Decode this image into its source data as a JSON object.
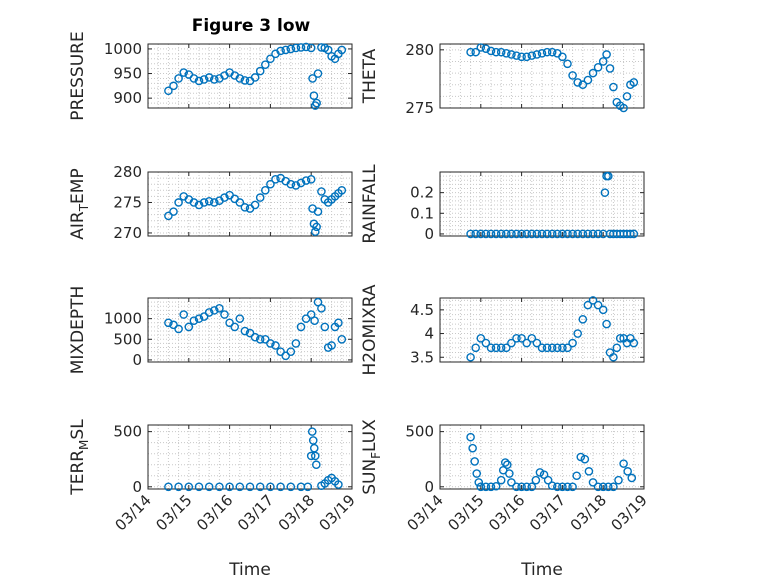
{
  "figure": {
    "title": "Figure 3 low",
    "colors": {
      "marker": "#0072bd",
      "axis": "#262626",
      "grid": "#c8c8c8",
      "background": "#ffffff"
    }
  },
  "chart_data": [
    {
      "id": "pressure",
      "type": "scatter",
      "ylabel": "PRESSURE",
      "ylim": [
        880,
        1010
      ],
      "yticks": [
        900,
        950,
        1000
      ],
      "ytick_labels": [
        "900",
        "950",
        "1000"
      ],
      "xlim": [
        "03/14",
        "03/19"
      ],
      "xticks": [
        "03/14",
        "03/15",
        "03/16",
        "03/17",
        "03/18",
        "03/19"
      ],
      "show_xtick_labels": false,
      "grid": true,
      "x": [
        "03/14 12:00",
        "03/14 15:00",
        "03/14 18:00",
        "03/14 21:00",
        "03/15 00:00",
        "03/15 03:00",
        "03/15 06:00",
        "03/15 09:00",
        "03/15 12:00",
        "03/15 15:00",
        "03/15 18:00",
        "03/15 21:00",
        "03/16 00:00",
        "03/16 03:00",
        "03/16 06:00",
        "03/16 09:00",
        "03/16 12:00",
        "03/16 15:00",
        "03/16 18:00",
        "03/16 21:00",
        "03/17 00:00",
        "03/17 03:00",
        "03/17 06:00",
        "03/17 09:00",
        "03/17 12:00",
        "03/17 15:00",
        "03/17 18:00",
        "03/17 21:00",
        "03/18 00:00",
        "03/18 00:48",
        "03/18 01:36",
        "03/18 02:24",
        "03/18 03:12",
        "03/18 04:00",
        "03/18 06:00",
        "03/18 08:00",
        "03/18 10:00",
        "03/18 12:00",
        "03/18 14:00",
        "03/18 16:00",
        "03/18 18:00"
      ],
      "y": [
        915,
        925,
        940,
        952,
        948,
        940,
        935,
        938,
        942,
        938,
        940,
        946,
        952,
        946,
        940,
        936,
        935,
        942,
        955,
        968,
        980,
        990,
        996,
        998,
        1000,
        1002,
        1003,
        1004,
        1002,
        940,
        905,
        885,
        890,
        950,
        1003,
        1002,
        998,
        985,
        980,
        990,
        998
      ]
    },
    {
      "id": "theta",
      "type": "scatter",
      "ylabel": "THETA",
      "ylim": [
        275,
        280.5
      ],
      "yticks": [
        275,
        280
      ],
      "ytick_labels": [
        "275",
        "280"
      ],
      "xlim": [
        "03/14",
        "03/19"
      ],
      "xticks": [
        "03/14",
        "03/15",
        "03/16",
        "03/17",
        "03/18",
        "03/19"
      ],
      "show_xtick_labels": false,
      "grid": true,
      "x": [
        "03/14 18:00",
        "03/14 21:00",
        "03/15 00:00",
        "03/15 03:00",
        "03/15 06:00",
        "03/15 09:00",
        "03/15 12:00",
        "03/15 15:00",
        "03/15 18:00",
        "03/15 21:00",
        "03/16 00:00",
        "03/16 03:00",
        "03/16 06:00",
        "03/16 09:00",
        "03/16 12:00",
        "03/16 15:00",
        "03/16 18:00",
        "03/16 21:00",
        "03/17 00:00",
        "03/17 03:00",
        "03/17 06:00",
        "03/17 09:00",
        "03/17 12:00",
        "03/17 15:00",
        "03/17 18:00",
        "03/17 21:00",
        "03/18 00:00",
        "03/18 02:00",
        "03/18 04:00",
        "03/18 06:00",
        "03/18 08:00",
        "03/18 10:00",
        "03/18 12:00",
        "03/18 14:00",
        "03/18 16:00",
        "03/18 18:00"
      ],
      "y": [
        279.8,
        279.8,
        280.2,
        280.1,
        279.9,
        279.8,
        279.8,
        279.7,
        279.6,
        279.5,
        279.4,
        279.4,
        279.5,
        279.6,
        279.7,
        279.8,
        279.8,
        279.7,
        279.4,
        278.8,
        277.8,
        277.2,
        277.0,
        277.4,
        278.0,
        278.5,
        279.0,
        279.6,
        278.4,
        276.8,
        275.5,
        275.2,
        275.0,
        276.0,
        277.0,
        277.2
      ]
    },
    {
      "id": "air_temp",
      "type": "scatter",
      "ylabel": "AIR_TEMP",
      "ylim": [
        269.5,
        280
      ],
      "yticks": [
        270,
        275,
        280
      ],
      "ytick_labels": [
        "270",
        "275",
        "280"
      ],
      "xlim": [
        "03/14",
        "03/19"
      ],
      "xticks": [
        "03/14",
        "03/15",
        "03/16",
        "03/17",
        "03/18",
        "03/19"
      ],
      "show_xtick_labels": false,
      "grid": true,
      "x": [
        "03/14 12:00",
        "03/14 15:00",
        "03/14 18:00",
        "03/14 21:00",
        "03/15 00:00",
        "03/15 03:00",
        "03/15 06:00",
        "03/15 09:00",
        "03/15 12:00",
        "03/15 15:00",
        "03/15 18:00",
        "03/15 21:00",
        "03/16 00:00",
        "03/16 03:00",
        "03/16 06:00",
        "03/16 09:00",
        "03/16 12:00",
        "03/16 15:00",
        "03/16 18:00",
        "03/16 21:00",
        "03/17 00:00",
        "03/17 03:00",
        "03/17 06:00",
        "03/17 09:00",
        "03/17 12:00",
        "03/17 15:00",
        "03/17 18:00",
        "03/17 21:00",
        "03/18 00:00",
        "03/18 00:48",
        "03/18 01:36",
        "03/18 02:24",
        "03/18 03:12",
        "03/18 04:00",
        "03/18 06:00",
        "03/18 08:00",
        "03/18 10:00",
        "03/18 12:00",
        "03/18 14:00",
        "03/18 16:00",
        "03/18 18:00"
      ],
      "y": [
        272.8,
        273.5,
        275.0,
        276.0,
        275.5,
        275.0,
        274.6,
        275.0,
        275.2,
        275.0,
        275.3,
        275.8,
        276.2,
        275.6,
        275.0,
        274.2,
        274.0,
        274.6,
        275.8,
        277.0,
        278.0,
        278.8,
        279.0,
        278.5,
        278.0,
        277.8,
        278.2,
        278.6,
        278.8,
        274.0,
        271.5,
        270.2,
        271.0,
        273.5,
        276.8,
        275.5,
        275.0,
        275.5,
        276.0,
        276.5,
        277.0
      ]
    },
    {
      "id": "rainfall",
      "type": "scatter",
      "ylabel": "RAINFALL",
      "ylim": [
        -0.01,
        0.3
      ],
      "yticks": [
        0,
        0.1,
        0.2
      ],
      "ytick_labels": [
        "0",
        "0.1",
        "0.2"
      ],
      "xlim": [
        "03/14",
        "03/19"
      ],
      "xticks": [
        "03/14",
        "03/15",
        "03/16",
        "03/17",
        "03/18",
        "03/19"
      ],
      "show_xtick_labels": false,
      "grid": true,
      "x": [
        "03/14 18:00",
        "03/14 21:00",
        "03/15 00:00",
        "03/15 03:00",
        "03/15 06:00",
        "03/15 09:00",
        "03/15 12:00",
        "03/15 15:00",
        "03/15 18:00",
        "03/15 21:00",
        "03/16 00:00",
        "03/16 03:00",
        "03/16 06:00",
        "03/16 09:00",
        "03/16 12:00",
        "03/16 15:00",
        "03/16 18:00",
        "03/16 21:00",
        "03/17 00:00",
        "03/17 03:00",
        "03/17 06:00",
        "03/17 09:00",
        "03/17 12:00",
        "03/17 15:00",
        "03/17 18:00",
        "03/17 21:00",
        "03/18 00:00",
        "03/18 01:00",
        "03/18 02:00",
        "03/18 03:00",
        "03/18 04:00",
        "03/18 06:00",
        "03/18 08:00",
        "03/18 10:00",
        "03/18 12:00",
        "03/18 14:00",
        "03/18 16:00",
        "03/18 18:00"
      ],
      "y": [
        0,
        0,
        0,
        0,
        0,
        0,
        0,
        0,
        0,
        0,
        0,
        0,
        0,
        0,
        0,
        0,
        0,
        0,
        0,
        0,
        0,
        0,
        0,
        0,
        0,
        0,
        0,
        0.2,
        0.28,
        0.28,
        0,
        0,
        0,
        0,
        0,
        0,
        0,
        0
      ]
    },
    {
      "id": "mixdepth",
      "type": "scatter",
      "ylabel": "MIXDEPTH",
      "ylim": [
        -50,
        1500
      ],
      "yticks": [
        0,
        500,
        1000
      ],
      "ytick_labels": [
        "0",
        "500",
        "1000"
      ],
      "xlim": [
        "03/14",
        "03/19"
      ],
      "xticks": [
        "03/14",
        "03/15",
        "03/16",
        "03/17",
        "03/18",
        "03/19"
      ],
      "show_xtick_labels": false,
      "grid": true,
      "x": [
        "03/14 12:00",
        "03/14 15:00",
        "03/14 18:00",
        "03/14 21:00",
        "03/15 00:00",
        "03/15 03:00",
        "03/15 06:00",
        "03/15 09:00",
        "03/15 12:00",
        "03/15 15:00",
        "03/15 18:00",
        "03/15 21:00",
        "03/16 00:00",
        "03/16 03:00",
        "03/16 06:00",
        "03/16 09:00",
        "03/16 12:00",
        "03/16 15:00",
        "03/16 18:00",
        "03/16 21:00",
        "03/17 00:00",
        "03/17 03:00",
        "03/17 06:00",
        "03/17 09:00",
        "03/17 12:00",
        "03/17 15:00",
        "03/17 18:00",
        "03/17 21:00",
        "03/18 00:00",
        "03/18 02:00",
        "03/18 04:00",
        "03/18 06:00",
        "03/18 08:00",
        "03/18 10:00",
        "03/18 12:00",
        "03/18 14:00",
        "03/18 16:00",
        "03/18 18:00"
      ],
      "y": [
        900,
        850,
        750,
        1100,
        800,
        950,
        1000,
        1050,
        1150,
        1200,
        1250,
        1100,
        900,
        800,
        1000,
        700,
        650,
        550,
        500,
        500,
        400,
        350,
        200,
        100,
        200,
        400,
        800,
        1000,
        1100,
        950,
        1400,
        1250,
        800,
        300,
        350,
        800,
        900,
        500
      ]
    },
    {
      "id": "h2omixra",
      "type": "scatter",
      "ylabel": "H2OMIXRA",
      "ylim": [
        3.4,
        4.75
      ],
      "yticks": [
        3.5,
        4,
        4.5
      ],
      "ytick_labels": [
        "3.5",
        "4",
        "4.5"
      ],
      "xlim": [
        "03/14",
        "03/19"
      ],
      "xticks": [
        "03/14",
        "03/15",
        "03/16",
        "03/17",
        "03/18",
        "03/19"
      ],
      "show_xtick_labels": false,
      "grid": true,
      "x": [
        "03/14 18:00",
        "03/14 21:00",
        "03/15 00:00",
        "03/15 03:00",
        "03/15 06:00",
        "03/15 09:00",
        "03/15 12:00",
        "03/15 15:00",
        "03/15 18:00",
        "03/15 21:00",
        "03/16 00:00",
        "03/16 03:00",
        "03/16 06:00",
        "03/16 09:00",
        "03/16 12:00",
        "03/16 15:00",
        "03/16 18:00",
        "03/16 21:00",
        "03/17 00:00",
        "03/17 03:00",
        "03/17 06:00",
        "03/17 09:00",
        "03/17 12:00",
        "03/17 15:00",
        "03/17 18:00",
        "03/17 21:00",
        "03/18 00:00",
        "03/18 02:00",
        "03/18 04:00",
        "03/18 06:00",
        "03/18 08:00",
        "03/18 10:00",
        "03/18 12:00",
        "03/18 14:00",
        "03/18 16:00",
        "03/18 18:00"
      ],
      "y": [
        3.5,
        3.7,
        3.9,
        3.8,
        3.7,
        3.7,
        3.7,
        3.7,
        3.8,
        3.9,
        3.9,
        3.8,
        3.9,
        3.8,
        3.7,
        3.7,
        3.7,
        3.7,
        3.7,
        3.7,
        3.8,
        4.0,
        4.3,
        4.6,
        4.7,
        4.6,
        4.5,
        4.2,
        3.6,
        3.5,
        3.7,
        3.9,
        3.9,
        3.8,
        3.9,
        3.8
      ]
    },
    {
      "id": "terr_msl",
      "type": "scatter",
      "ylabel": "TERR_MSL",
      "ylim": [
        -20,
        560
      ],
      "yticks": [
        0,
        500
      ],
      "ytick_labels": [
        "0",
        "500"
      ],
      "xlim": [
        "03/14",
        "03/19"
      ],
      "xticks": [
        "03/14",
        "03/15",
        "03/16",
        "03/17",
        "03/18",
        "03/19"
      ],
      "show_xtick_labels": true,
      "xlabel": "Time",
      "grid": true,
      "x": [
        "03/14 12:00",
        "03/14 18:00",
        "03/15 00:00",
        "03/15 06:00",
        "03/15 12:00",
        "03/15 18:00",
        "03/16 00:00",
        "03/16 06:00",
        "03/16 12:00",
        "03/16 18:00",
        "03/17 00:00",
        "03/17 06:00",
        "03/17 12:00",
        "03/17 18:00",
        "03/17 22:00",
        "03/18 00:00",
        "03/18 00:36",
        "03/18 01:12",
        "03/18 01:48",
        "03/18 02:24",
        "03/18 03:00",
        "03/18 06:00",
        "03/18 08:00",
        "03/18 10:00",
        "03/18 12:00",
        "03/18 14:00",
        "03/18 16:00"
      ],
      "y": [
        0,
        0,
        0,
        0,
        0,
        0,
        0,
        0,
        0,
        0,
        0,
        0,
        0,
        0,
        0,
        280,
        500,
        420,
        350,
        280,
        200,
        10,
        30,
        60,
        80,
        50,
        20
      ]
    },
    {
      "id": "sun_flux",
      "type": "scatter",
      "ylabel": "SUN_FLUX",
      "ylim": [
        -20,
        560
      ],
      "yticks": [
        0,
        500
      ],
      "ytick_labels": [
        "0",
        "500"
      ],
      "xlim": [
        "03/14",
        "03/19"
      ],
      "xticks": [
        "03/14",
        "03/15",
        "03/16",
        "03/17",
        "03/18",
        "03/19"
      ],
      "show_xtick_labels": true,
      "xlabel": "Time",
      "grid": true,
      "x": [
        "03/14 18:00",
        "03/14 19:12",
        "03/14 20:24",
        "03/14 21:36",
        "03/14 22:48",
        "03/15 00:00",
        "03/15 03:00",
        "03/15 06:00",
        "03/15 09:00",
        "03/15 12:00",
        "03/15 13:12",
        "03/15 14:24",
        "03/15 15:36",
        "03/15 16:48",
        "03/15 18:00",
        "03/15 21:00",
        "03/16 00:00",
        "03/16 03:00",
        "03/16 06:00",
        "03/16 08:24",
        "03/16 10:48",
        "03/16 13:12",
        "03/16 15:36",
        "03/16 18:00",
        "03/16 21:00",
        "03/17 00:00",
        "03/17 03:00",
        "03/17 06:00",
        "03/17 08:24",
        "03/17 10:48",
        "03/17 13:12",
        "03/17 15:36",
        "03/17 18:00",
        "03/17 21:00",
        "03/18 00:00",
        "03/18 03:00",
        "03/18 06:00",
        "03/18 09:00",
        "03/18 12:00",
        "03/18 14:24",
        "03/18 16:48"
      ],
      "y": [
        450,
        350,
        230,
        120,
        40,
        0,
        0,
        0,
        5,
        60,
        150,
        220,
        200,
        120,
        40,
        0,
        0,
        0,
        0,
        60,
        130,
        110,
        60,
        10,
        0,
        0,
        0,
        0,
        100,
        270,
        250,
        140,
        40,
        0,
        0,
        0,
        0,
        60,
        210,
        140,
        80
      ]
    }
  ]
}
